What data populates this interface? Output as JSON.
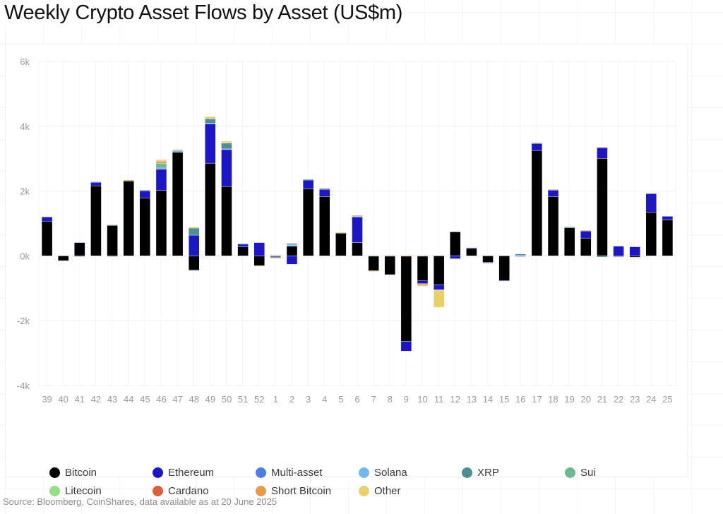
{
  "title": "Weekly Crypto Asset Flows by Asset (US$m)",
  "source": "Source: Bloomberg, CoinShares, data available as at 20 June 2025",
  "chart_data": {
    "type": "bar",
    "stacked": true,
    "title": "Weekly Crypto Asset Flows by Asset (US$m)",
    "xlabel": "",
    "ylabel": "",
    "ylim": [
      -4000,
      6000
    ],
    "yticks": [
      6000,
      4000,
      2000,
      0,
      -2000,
      -4000
    ],
    "ytick_labels": [
      "6k",
      "4k",
      "2k",
      "0k",
      "-2k",
      "-4k"
    ],
    "grid": true,
    "legend_position": "bottom",
    "categories": [
      "39",
      "40",
      "41",
      "42",
      "43",
      "44",
      "45",
      "46",
      "47",
      "48",
      "49",
      "50",
      "51",
      "52",
      "1",
      "2",
      "3",
      "4",
      "5",
      "6",
      "7",
      "8",
      "9",
      "10",
      "11",
      "12",
      "13",
      "14",
      "15",
      "16",
      "17",
      "18",
      "19",
      "20",
      "21",
      "22",
      "23",
      "24",
      "25"
    ],
    "series": [
      {
        "name": "Bitcoin",
        "color": "#000000",
        "values": [
          1070,
          -150,
          410,
          2160,
          940,
          2310,
          1790,
          2020,
          3200,
          -440,
          2860,
          2140,
          280,
          -300,
          -30,
          300,
          2070,
          1830,
          700,
          410,
          -460,
          -580,
          -2640,
          -770,
          -890,
          740,
          230,
          -200,
          -760,
          0,
          3250,
          1830,
          870,
          550,
          3010,
          -20,
          -40,
          1350,
          1110
        ]
      },
      {
        "name": "Ethereum",
        "color": "#1c17c4",
        "values": [
          130,
          0,
          -20,
          110,
          -20,
          0,
          220,
          650,
          0,
          640,
          1220,
          1150,
          90,
          410,
          -20,
          -260,
          270,
          220,
          0,
          790,
          0,
          0,
          -300,
          -90,
          -160,
          -90,
          20,
          -20,
          -20,
          -20,
          220,
          200,
          0,
          220,
          330,
          300,
          280,
          570,
          110
        ]
      },
      {
        "name": "Multi-asset",
        "color": "#4a7fe8",
        "values": [
          0,
          0,
          0,
          0,
          0,
          0,
          0,
          40,
          0,
          0,
          10,
          10,
          0,
          0,
          0,
          20,
          0,
          30,
          0,
          20,
          0,
          0,
          0,
          0,
          0,
          0,
          0,
          0,
          0,
          20,
          0,
          0,
          0,
          0,
          0,
          0,
          0,
          0,
          0
        ]
      },
      {
        "name": "Solana",
        "color": "#6fb9ee",
        "values": [
          0,
          0,
          20,
          0,
          20,
          0,
          0,
          0,
          40,
          -10,
          0,
          0,
          0,
          0,
          0,
          60,
          0,
          0,
          0,
          0,
          0,
          0,
          0,
          0,
          0,
          0,
          0,
          0,
          0,
          0,
          0,
          0,
          0,
          0,
          0,
          0,
          0,
          0,
          0
        ]
      },
      {
        "name": "XRP",
        "color": "#4c8f94",
        "values": [
          0,
          0,
          0,
          0,
          0,
          0,
          20,
          0,
          20,
          220,
          140,
          180,
          10,
          0,
          0,
          0,
          0,
          0,
          0,
          0,
          0,
          10,
          0,
          0,
          0,
          0,
          0,
          0,
          0,
          40,
          0,
          0,
          0,
          0,
          -40,
          -20,
          0,
          0,
          0
        ]
      },
      {
        "name": "Sui",
        "color": "#6dba90",
        "values": [
          0,
          0,
          0,
          0,
          0,
          0,
          0,
          150,
          0,
          0,
          0,
          0,
          0,
          0,
          0,
          0,
          30,
          0,
          0,
          0,
          10,
          0,
          0,
          10,
          0,
          0,
          0,
          0,
          0,
          0,
          0,
          0,
          30,
          0,
          0,
          0,
          0,
          0,
          0
        ]
      },
      {
        "name": "Litecoin",
        "color": "#93dd83",
        "values": [
          0,
          0,
          0,
          0,
          0,
          0,
          0,
          0,
          0,
          0,
          0,
          0,
          0,
          0,
          0,
          0,
          0,
          0,
          0,
          0,
          0,
          0,
          0,
          0,
          0,
          0,
          0,
          0,
          0,
          0,
          0,
          0,
          0,
          0,
          0,
          0,
          0,
          0,
          0
        ]
      },
      {
        "name": "Cardano",
        "color": "#d9603a",
        "values": [
          0,
          0,
          0,
          0,
          0,
          0,
          0,
          0,
          0,
          0,
          0,
          0,
          0,
          0,
          0,
          0,
          0,
          0,
          0,
          0,
          0,
          0,
          0,
          0,
          0,
          0,
          0,
          0,
          0,
          0,
          0,
          0,
          0,
          0,
          0,
          0,
          0,
          0,
          0
        ]
      },
      {
        "name": "Short Bitcoin",
        "color": "#e89a4a",
        "values": [
          0,
          0,
          0,
          20,
          0,
          30,
          0,
          60,
          0,
          0,
          20,
          20,
          0,
          -20,
          -20,
          20,
          0,
          0,
          0,
          30,
          -20,
          0,
          10,
          -40,
          -10,
          0,
          0,
          0,
          0,
          0,
          0,
          20,
          0,
          20,
          20,
          0,
          0,
          0,
          0
        ]
      },
      {
        "name": "Other",
        "color": "#e9d068",
        "values": [
          0,
          0,
          0,
          0,
          0,
          0,
          0,
          50,
          30,
          40,
          50,
          40,
          0,
          0,
          0,
          0,
          0,
          20,
          30,
          0,
          0,
          0,
          -20,
          -40,
          -530,
          -10,
          0,
          0,
          0,
          0,
          30,
          0,
          0,
          0,
          0,
          0,
          -30,
          20,
          0
        ]
      }
    ]
  }
}
